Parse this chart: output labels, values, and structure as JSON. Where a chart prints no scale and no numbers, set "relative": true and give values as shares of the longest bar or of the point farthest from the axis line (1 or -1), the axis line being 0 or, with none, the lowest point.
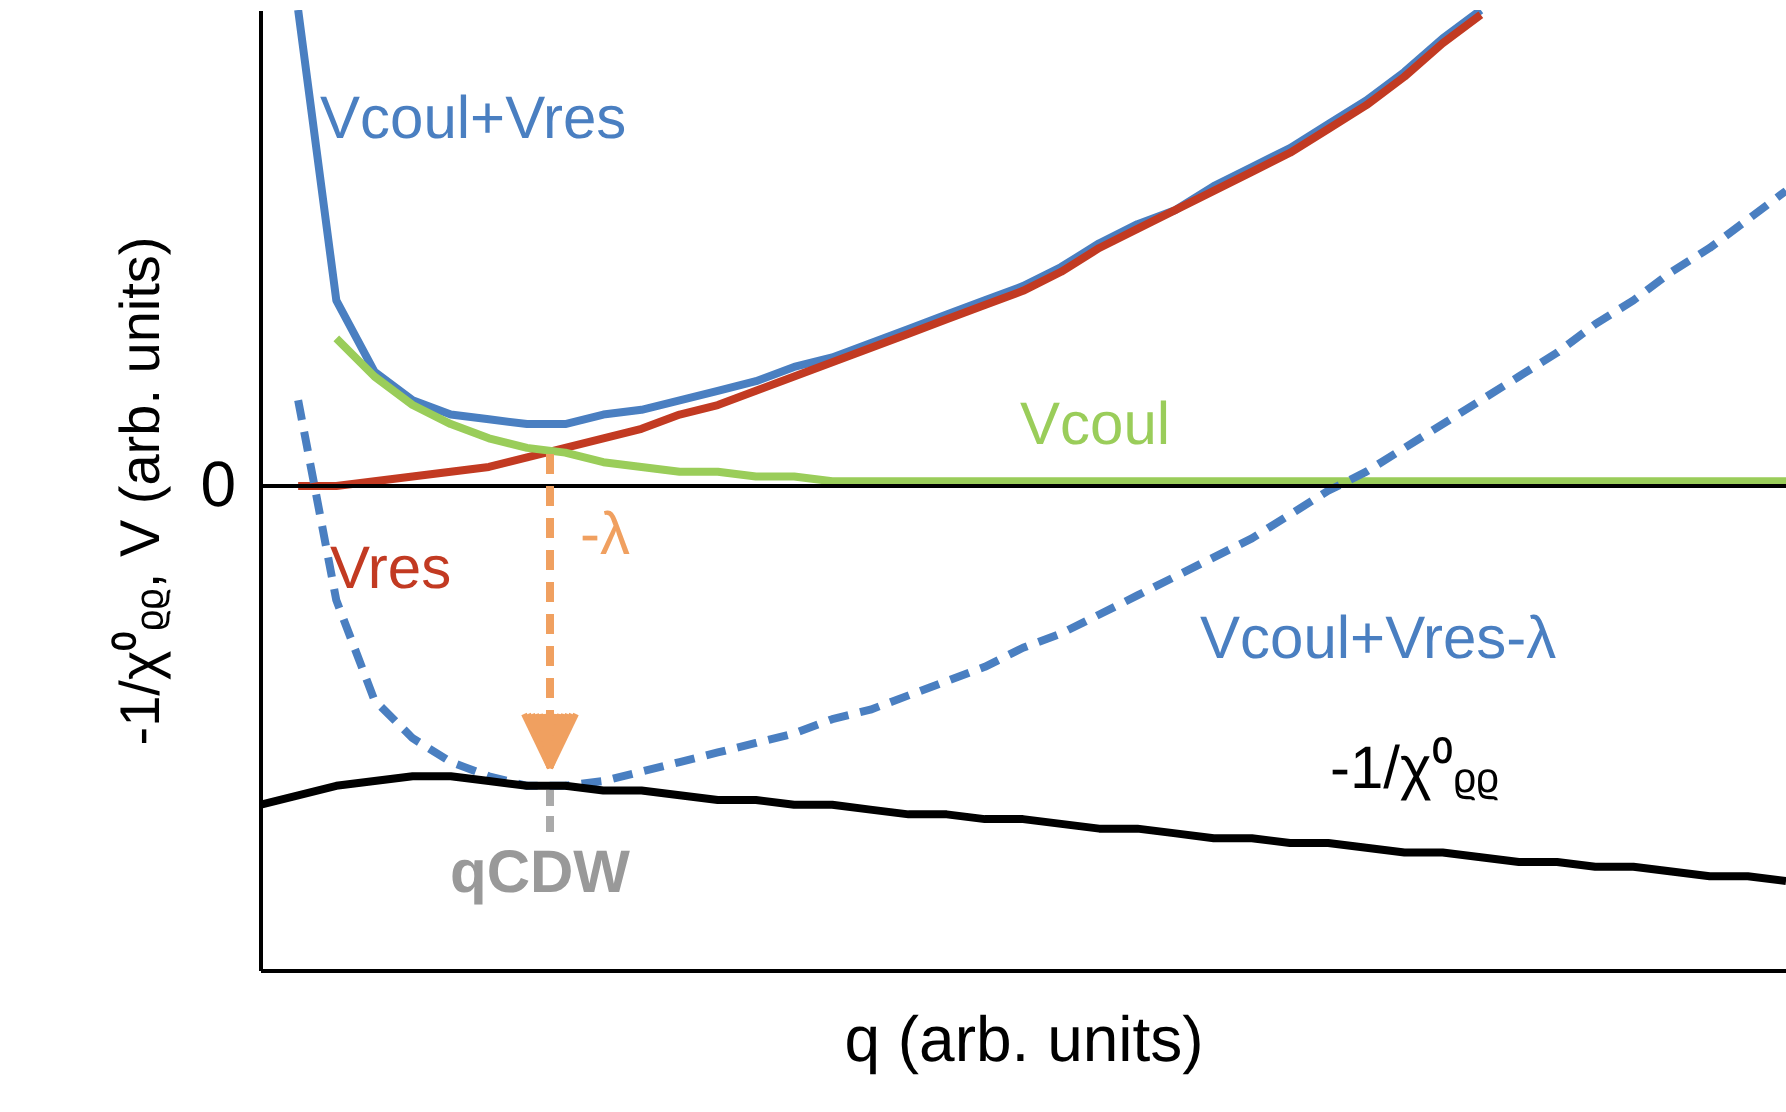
{
  "chart_data": {
    "type": "line",
    "relative": true,
    "xlabel": "q (arb. units)",
    "ylabel": "-1/χ⁰ᵨᵨ,  V (arb. units)",
    "categories": [
      null,
      null,
      null,
      null,
      null,
      null,
      null,
      null,
      null,
      null,
      null,
      null,
      null,
      null,
      null,
      null,
      null,
      null,
      null,
      null,
      null,
      null,
      null,
      null,
      null,
      null,
      null,
      null,
      null,
      null,
      null,
      null,
      null,
      null,
      null,
      null,
      null,
      null,
      null,
      null,
      null
    ],
    "legend": false,
    "marker": "none",
    "series": [
      {
        "name": "Vcoul+Vres",
        "color": "#4a7fc1",
        "line_style": "solid",
        "values": [
          null,
          1.0,
          0.39,
          0.24,
          0.18,
          0.15,
          0.14,
          0.13,
          0.13,
          0.15,
          0.16,
          0.18,
          0.2,
          0.22,
          0.25,
          0.27,
          0.3,
          0.33,
          0.36,
          0.39,
          0.42,
          0.46,
          0.51,
          0.55,
          0.58,
          0.63,
          0.67,
          0.71,
          0.76,
          0.81,
          0.87,
          0.94,
          1.0,
          null,
          null,
          null,
          null,
          null,
          null,
          null,
          null
        ]
      },
      {
        "name": "Vres",
        "color": "#c23a22",
        "line_style": "solid",
        "values": [
          null,
          0.0,
          0.0,
          0.01,
          0.02,
          0.03,
          0.04,
          0.06,
          0.08,
          0.1,
          0.12,
          0.15,
          0.17,
          0.2,
          0.23,
          0.26,
          0.29,
          0.32,
          0.35,
          0.38,
          0.41,
          0.45,
          0.5,
          0.54,
          0.58,
          0.62,
          0.66,
          0.7,
          0.75,
          0.8,
          0.86,
          0.93,
          0.99,
          null,
          null,
          null,
          null,
          null,
          null,
          null,
          null
        ]
      },
      {
        "name": "Vcoul",
        "color": "#9acd5a",
        "line_style": "solid",
        "values": [
          null,
          null,
          0.31,
          0.23,
          0.17,
          0.13,
          0.1,
          0.08,
          0.07,
          0.05,
          0.04,
          0.03,
          0.03,
          0.02,
          0.02,
          0.01,
          0.01,
          0.01,
          0.01,
          0.01,
          0.01,
          0.01,
          0.01,
          0.01,
          0.01,
          0.01,
          0.01,
          0.01,
          0.01,
          0.01,
          0.01,
          0.01,
          0.01,
          0.01,
          0.01,
          0.01,
          0.01,
          0.01,
          0.01,
          0.01,
          0.01
        ]
      },
      {
        "name": "Vcoul+Vres-λ",
        "color": "#4a7fc1",
        "line_style": "dashed",
        "values": [
          null,
          0.18,
          -0.24,
          -0.45,
          -0.53,
          -0.58,
          -0.61,
          -0.63,
          -0.63,
          -0.62,
          -0.6,
          -0.58,
          -0.56,
          -0.54,
          -0.52,
          -0.49,
          -0.47,
          -0.44,
          -0.41,
          -0.38,
          -0.34,
          -0.31,
          -0.27,
          -0.23,
          -0.19,
          -0.15,
          -0.11,
          -0.06,
          -0.01,
          0.03,
          0.08,
          0.13,
          0.18,
          0.23,
          0.28,
          0.34,
          0.39,
          0.45,
          0.5,
          0.56,
          0.62
        ]
      },
      {
        "name": "-1/χ⁰ᵨᵨ",
        "color": "#000000",
        "line_style": "solid",
        "values": [
          -0.67,
          -0.65,
          -0.63,
          -0.62,
          -0.61,
          -0.61,
          -0.62,
          -0.63,
          -0.63,
          -0.64,
          -0.64,
          -0.65,
          -0.66,
          -0.66,
          -0.67,
          -0.67,
          -0.68,
          -0.69,
          -0.69,
          -0.7,
          -0.7,
          -0.71,
          -0.72,
          -0.72,
          -0.73,
          -0.74,
          -0.74,
          -0.75,
          -0.75,
          -0.76,
          -0.77,
          -0.77,
          -0.78,
          -0.79,
          -0.79,
          -0.8,
          -0.8,
          -0.81,
          -0.82,
          -0.82,
          -0.83
        ]
      }
    ],
    "ref_lines": [
      {
        "axis": "y",
        "value": 0,
        "label": "0",
        "color": "#000000"
      }
    ],
    "annotations": [
      "-λ",
      "qCDW"
    ]
  }
}
